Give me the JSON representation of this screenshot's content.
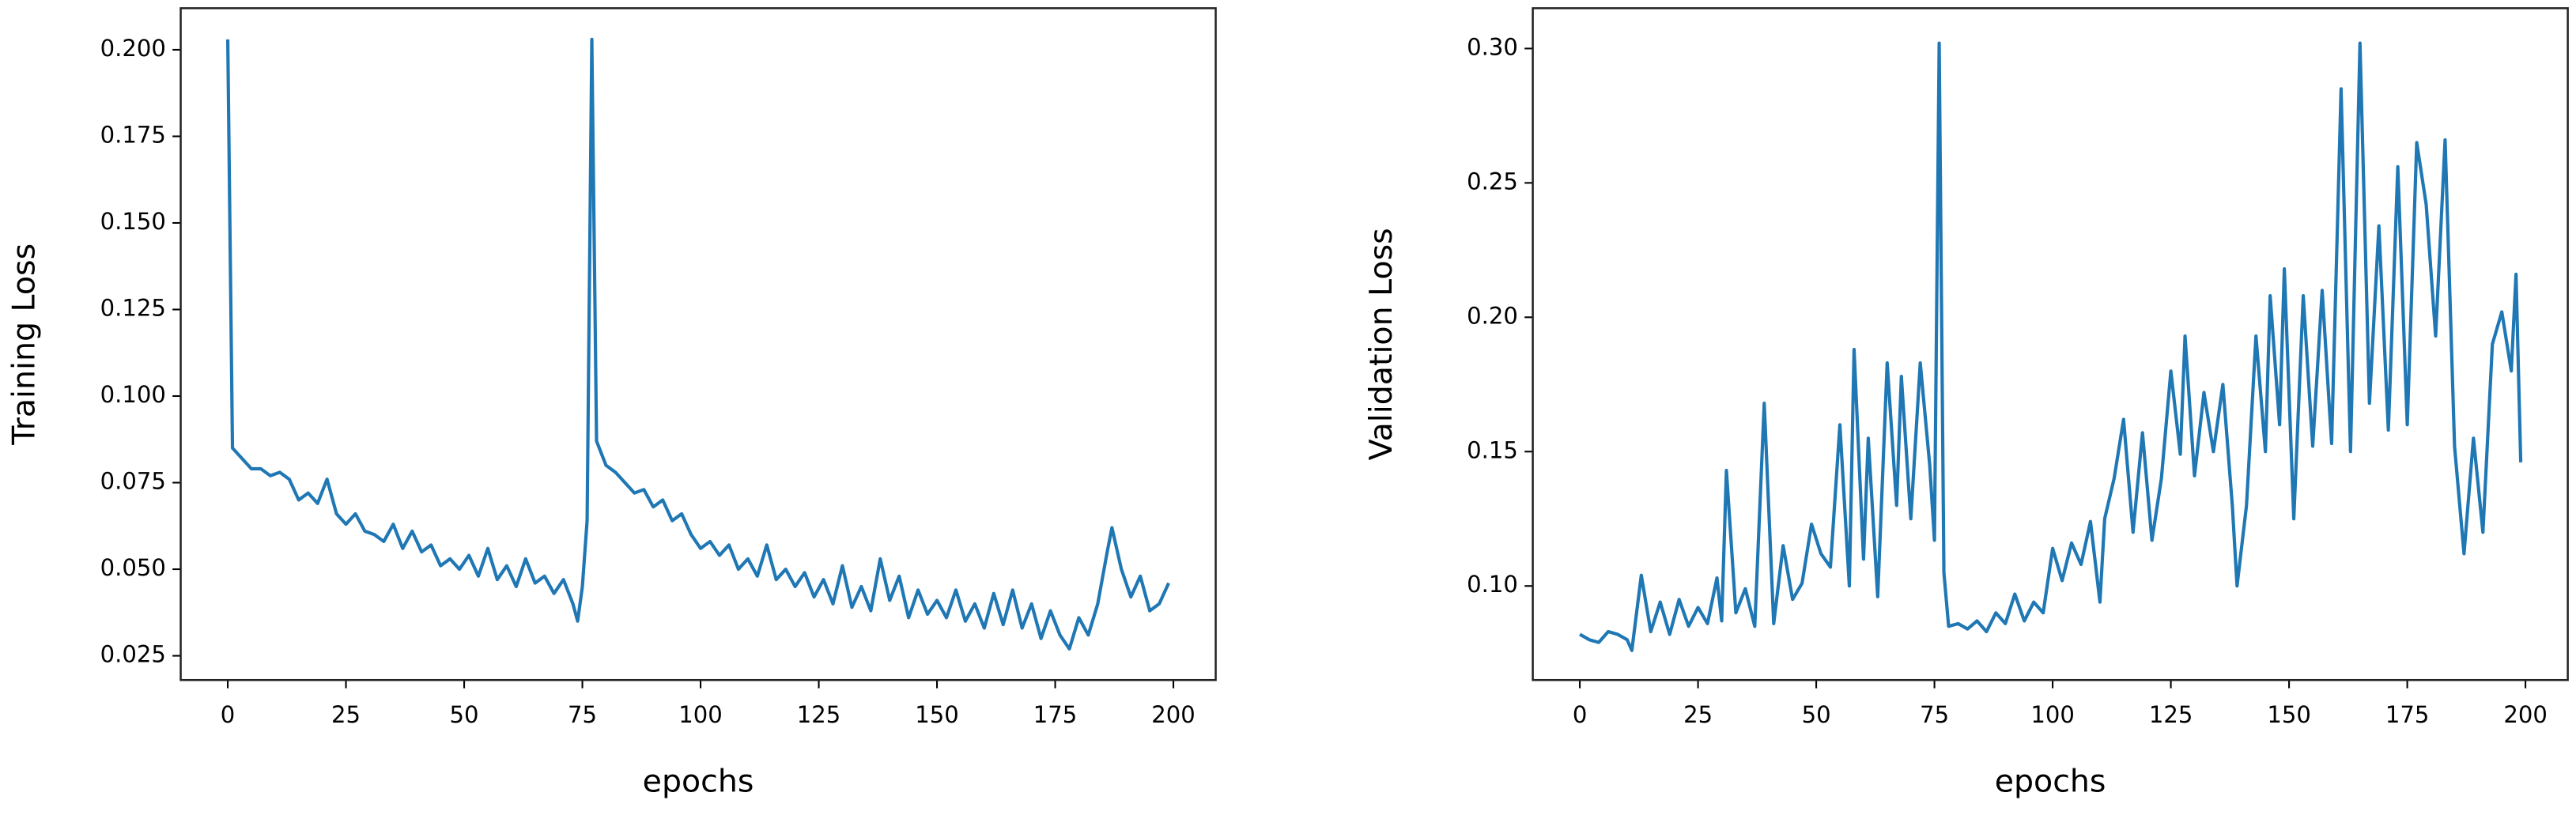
{
  "chart_data": [
    {
      "type": "line",
      "xlabel": "epochs",
      "ylabel": "Training Loss",
      "xlim": [
        -9.95,
        208.95
      ],
      "xticks": [
        0,
        25,
        50,
        75,
        100,
        125,
        150,
        175,
        200
      ],
      "ylim": [
        0.018,
        0.212
      ],
      "yticks": [
        {
          "value": 0.025,
          "label": "0.025"
        },
        {
          "value": 0.05,
          "label": "0.050"
        },
        {
          "value": 0.075,
          "label": "0.075"
        },
        {
          "value": 0.1,
          "label": "0.100"
        },
        {
          "value": 0.125,
          "label": "0.125"
        },
        {
          "value": 0.15,
          "label": "0.150"
        },
        {
          "value": 0.175,
          "label": "0.175"
        },
        {
          "value": 0.2,
          "label": "0.200"
        }
      ],
      "series": [
        {
          "color": "#1f77b4",
          "x": [
            0,
            1,
            3,
            5,
            7,
            9,
            11,
            13,
            15,
            17,
            19,
            21,
            23,
            25,
            27,
            29,
            31,
            33,
            35,
            37,
            39,
            41,
            43,
            45,
            47,
            49,
            51,
            53,
            55,
            57,
            59,
            61,
            63,
            65,
            67,
            69,
            71,
            73,
            74,
            75,
            76,
            77,
            78,
            80,
            82,
            84,
            86,
            88,
            90,
            92,
            94,
            96,
            98,
            100,
            102,
            104,
            106,
            108,
            110,
            112,
            114,
            116,
            118,
            120,
            122,
            124,
            126,
            128,
            130,
            132,
            134,
            136,
            138,
            140,
            142,
            144,
            146,
            148,
            150,
            152,
            154,
            156,
            158,
            160,
            162,
            164,
            166,
            168,
            170,
            172,
            174,
            176,
            178,
            180,
            182,
            184,
            186,
            187,
            189,
            191,
            193,
            195,
            197,
            199
          ],
          "values": [
            0.203,
            0.085,
            0.082,
            0.079,
            0.079,
            0.077,
            0.078,
            0.076,
            0.07,
            0.072,
            0.069,
            0.076,
            0.066,
            0.063,
            0.066,
            0.061,
            0.06,
            0.058,
            0.063,
            0.056,
            0.061,
            0.055,
            0.057,
            0.051,
            0.053,
            0.05,
            0.054,
            0.048,
            0.056,
            0.047,
            0.051,
            0.045,
            0.053,
            0.046,
            0.048,
            0.043,
            0.047,
            0.04,
            0.035,
            0.045,
            0.064,
            0.203,
            0.087,
            0.08,
            0.078,
            0.075,
            0.072,
            0.073,
            0.068,
            0.07,
            0.064,
            0.066,
            0.06,
            0.056,
            0.058,
            0.054,
            0.057,
            0.05,
            0.053,
            0.048,
            0.057,
            0.047,
            0.05,
            0.045,
            0.049,
            0.042,
            0.047,
            0.04,
            0.051,
            0.039,
            0.045,
            0.038,
            0.053,
            0.041,
            0.048,
            0.036,
            0.044,
            0.037,
            0.041,
            0.036,
            0.044,
            0.035,
            0.04,
            0.033,
            0.043,
            0.034,
            0.044,
            0.033,
            0.04,
            0.03,
            0.038,
            0.031,
            0.027,
            0.036,
            0.031,
            0.04,
            0.055,
            0.062,
            0.05,
            0.042,
            0.048,
            0.038,
            0.04,
            0.046
          ]
        }
      ]
    },
    {
      "type": "line",
      "xlabel": "epochs",
      "ylabel": "Validation Loss",
      "xlim": [
        -9.95,
        208.95
      ],
      "xticks": [
        0,
        25,
        50,
        75,
        100,
        125,
        150,
        175,
        200
      ],
      "ylim": [
        0.065,
        0.315
      ],
      "yticks": [
        {
          "value": 0.1,
          "label": "0.10"
        },
        {
          "value": 0.15,
          "label": "0.15"
        },
        {
          "value": 0.2,
          "label": "0.20"
        },
        {
          "value": 0.25,
          "label": "0.25"
        },
        {
          "value": 0.3,
          "label": "0.30"
        }
      ],
      "series": [
        {
          "color": "#1f77b4",
          "x": [
            0,
            2,
            4,
            6,
            8,
            10,
            11,
            13,
            15,
            17,
            19,
            21,
            23,
            25,
            27,
            29,
            30,
            31,
            33,
            35,
            37,
            39,
            41,
            43,
            45,
            47,
            49,
            51,
            53,
            55,
            57,
            58,
            60,
            61,
            63,
            65,
            67,
            68,
            70,
            72,
            74,
            75,
            76,
            77,
            78,
            80,
            82,
            84,
            86,
            88,
            90,
            92,
            94,
            96,
            98,
            100,
            102,
            104,
            106,
            108,
            110,
            111,
            113,
            115,
            117,
            119,
            121,
            123,
            125,
            127,
            128,
            130,
            132,
            134,
            136,
            138,
            139,
            141,
            143,
            145,
            146,
            148,
            149,
            151,
            153,
            155,
            157,
            159,
            161,
            163,
            165,
            167,
            169,
            171,
            173,
            175,
            177,
            179,
            181,
            183,
            185,
            187,
            189,
            191,
            193,
            195,
            197,
            198,
            199
          ],
          "values": [
            0.082,
            0.08,
            0.079,
            0.083,
            0.082,
            0.08,
            0.076,
            0.104,
            0.083,
            0.094,
            0.082,
            0.095,
            0.085,
            0.092,
            0.086,
            0.103,
            0.087,
            0.143,
            0.09,
            0.099,
            0.085,
            0.168,
            0.086,
            0.115,
            0.095,
            0.101,
            0.123,
            0.112,
            0.107,
            0.16,
            0.1,
            0.188,
            0.11,
            0.155,
            0.096,
            0.183,
            0.13,
            0.178,
            0.125,
            0.183,
            0.145,
            0.117,
            0.302,
            0.105,
            0.085,
            0.086,
            0.084,
            0.087,
            0.083,
            0.09,
            0.086,
            0.097,
            0.087,
            0.094,
            0.09,
            0.114,
            0.102,
            0.116,
            0.108,
            0.124,
            0.094,
            0.125,
            0.14,
            0.162,
            0.12,
            0.157,
            0.117,
            0.14,
            0.18,
            0.149,
            0.193,
            0.141,
            0.172,
            0.15,
            0.175,
            0.13,
            0.1,
            0.13,
            0.193,
            0.15,
            0.208,
            0.16,
            0.218,
            0.125,
            0.208,
            0.152,
            0.21,
            0.153,
            0.285,
            0.15,
            0.302,
            0.168,
            0.234,
            0.158,
            0.256,
            0.16,
            0.265,
            0.242,
            0.193,
            0.266,
            0.152,
            0.112,
            0.155,
            0.12,
            0.19,
            0.202,
            0.18,
            0.216,
            0.146
          ]
        }
      ]
    }
  ]
}
